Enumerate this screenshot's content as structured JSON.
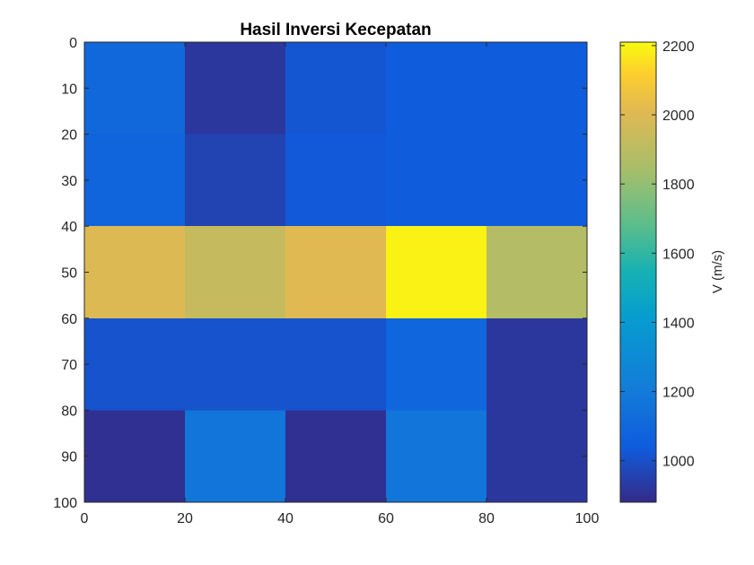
{
  "chart_data": {
    "type": "heatmap",
    "title": "Hasil Inversi Kecepatan",
    "xlabel": "",
    "ylabel": "",
    "x_edges": [
      0,
      20,
      40,
      60,
      80,
      100
    ],
    "y_edges": [
      0,
      20,
      40,
      60,
      80,
      100
    ],
    "xlim": [
      0,
      100
    ],
    "ylim": [
      0,
      100
    ],
    "y_reversed": true,
    "xticks": [
      0,
      20,
      40,
      60,
      80,
      100
    ],
    "yticks": [
      0,
      10,
      20,
      30,
      40,
      50,
      60,
      70,
      80,
      90,
      100
    ],
    "values": [
      [
        1100,
        920,
        1020,
        1040,
        1040
      ],
      [
        1080,
        960,
        1030,
        1040,
        1040
      ],
      [
        2000,
        1930,
        2010,
        2190,
        1880
      ],
      [
        1010,
        1010,
        1010,
        1090,
        920
      ],
      [
        900,
        1170,
        900,
        1170,
        920
      ]
    ],
    "colorbar": {
      "label": "V (m/s)",
      "limits": [
        880,
        2210
      ],
      "ticks": [
        1000,
        1200,
        1400,
        1600,
        1800,
        2000,
        2200
      ],
      "colormap": "parula"
    },
    "grid": false
  }
}
